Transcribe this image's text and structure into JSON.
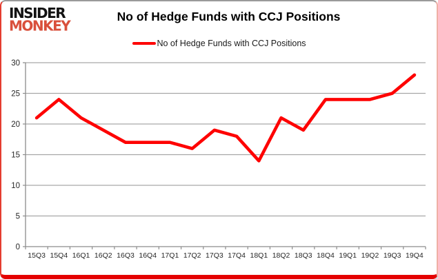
{
  "logo": {
    "line1": "INSIDER",
    "line2": "MONKEY"
  },
  "title": "No of Hedge Funds with CCJ Positions",
  "legend": {
    "label": "No of Hedge Funds with CCJ Positions"
  },
  "colors": {
    "line": "#fe0000",
    "gridline": "#a6a6a6",
    "axis": "#8c8c8c",
    "tick_label": "#262626",
    "border_red": "#e40000",
    "logo_red": "#d9503c"
  },
  "chart_data": {
    "type": "line",
    "title": "No of Hedge Funds with CCJ Positions",
    "xlabel": "",
    "ylabel": "",
    "categories": [
      "15Q3",
      "15Q4",
      "16Q1",
      "16Q2",
      "16Q3",
      "16Q4",
      "17Q1",
      "17Q2",
      "17Q3",
      "17Q4",
      "18Q1",
      "18Q2",
      "18Q3",
      "18Q4",
      "19Q1",
      "19Q2",
      "19Q3",
      "19Q4"
    ],
    "series": [
      {
        "name": "No of Hedge Funds with CCJ Positions",
        "color": "#fe0000",
        "values": [
          21,
          24,
          21,
          19,
          17,
          17,
          17,
          16,
          19,
          18,
          14,
          21,
          19,
          24,
          24,
          24,
          25,
          28
        ]
      }
    ],
    "ylim": [
      0,
      30
    ],
    "ytick_step": 5,
    "grid": true,
    "legend_position": "top-center"
  }
}
